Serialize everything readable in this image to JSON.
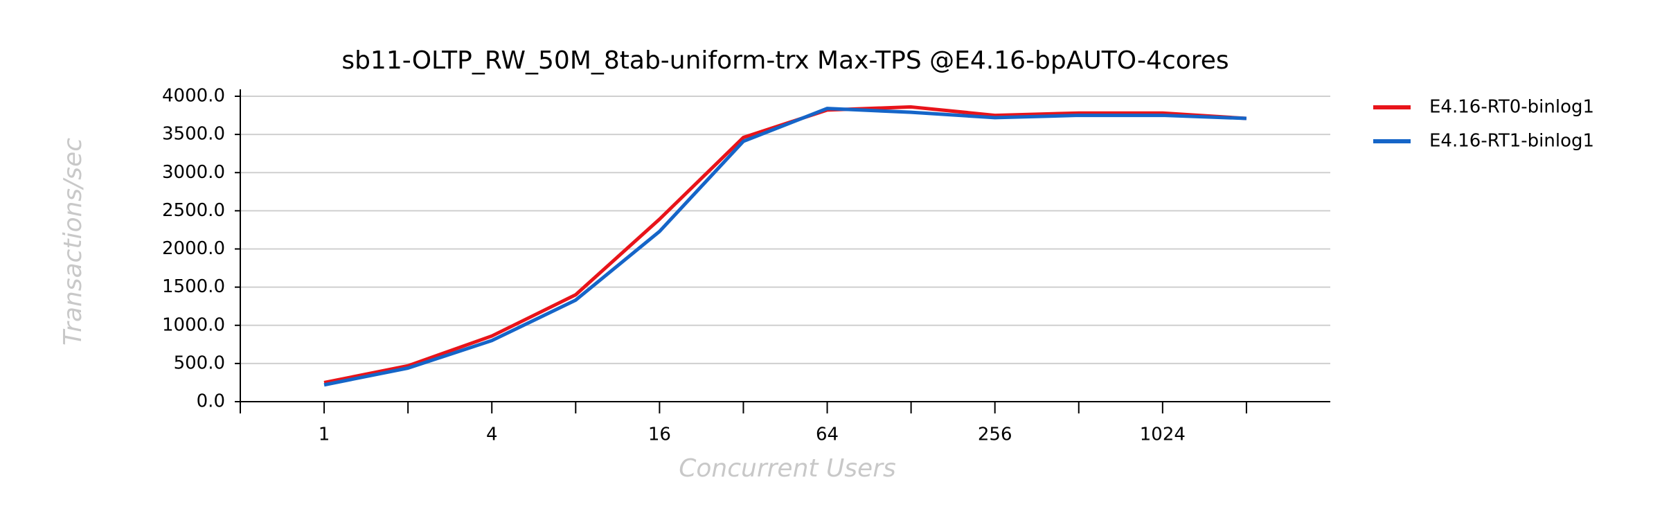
{
  "chart_data": {
    "type": "line",
    "title": "sb11-OLTP_RW_50M_8tab-uniform-trx Max-TPS @E4.16-bpAUTO-4cores",
    "x_label": "Concurrent Users",
    "y_label": "Transactions/sec",
    "categories": [
      "1",
      null,
      "4",
      null,
      "16",
      null,
      "64",
      null,
      "256",
      null,
      "1024",
      null
    ],
    "series": [
      {
        "name": "E4.16-RT0-binlog1",
        "color": "#e8141a",
        "values": [
          250,
          470,
          860,
          1400,
          2390,
          3460,
          3820,
          3860,
          3750,
          3780,
          3780,
          3710
        ]
      },
      {
        "name": "E4.16-RT1-binlog1",
        "color": "#1565c8",
        "values": [
          220,
          440,
          800,
          1330,
          2230,
          3410,
          3840,
          3790,
          3720,
          3750,
          3750,
          3710
        ]
      }
    ],
    "ylim": [
      0,
      4000
    ],
    "yticks": [
      {
        "value": 0,
        "label": "0.0"
      },
      {
        "value": 500,
        "label": "500.0"
      },
      {
        "value": 1000,
        "label": "1000.0"
      },
      {
        "value": 1500,
        "label": "1500.0"
      },
      {
        "value": 2000,
        "label": "2000.0"
      },
      {
        "value": 2500,
        "label": "2500.0"
      },
      {
        "value": 3000,
        "label": "3000.0"
      },
      {
        "value": 3500,
        "label": "3500.0"
      },
      {
        "value": 4000,
        "label": "4000.0"
      }
    ],
    "grid": true,
    "legend": "upper right"
  }
}
